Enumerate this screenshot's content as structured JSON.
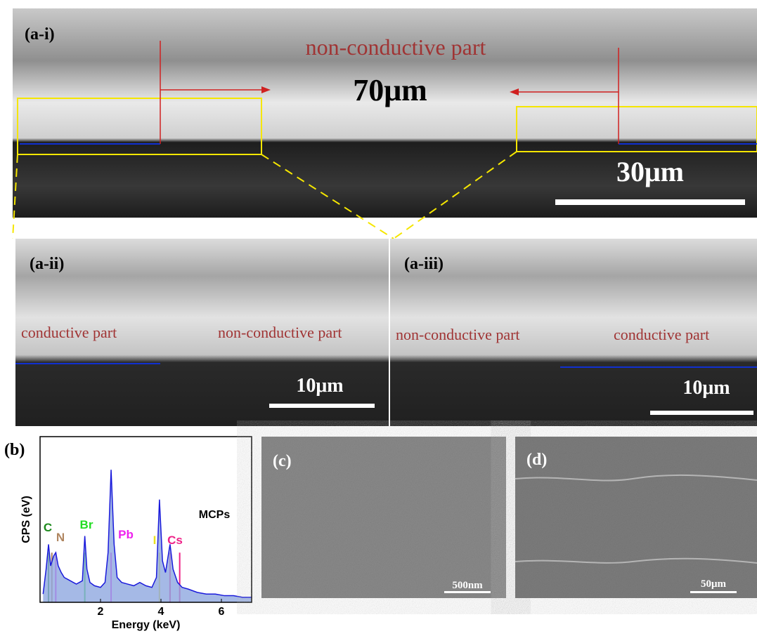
{
  "panel_a_i": {
    "label": "(a-i)",
    "caption": "non-conductive part",
    "width_text": "70μm",
    "scale_text": "30μm"
  },
  "panel_a_ii": {
    "label": "(a-ii)",
    "left_text": "conductive part",
    "right_text": "non-conductive part",
    "scale_text": "10μm"
  },
  "panel_a_iii": {
    "label": "(a-iii)",
    "left_text": "non-conductive part",
    "right_text": "conductive part",
    "scale_text": "10μm"
  },
  "panel_b": {
    "label": "(b)"
  },
  "panel_c": {
    "label": "(c)",
    "scale_text": "500nm"
  },
  "panel_d": {
    "label": "(d)",
    "scale_text": "50μm"
  },
  "chart_data": {
    "type": "area",
    "x_label": "Energy (keV)",
    "y_label": "CPS (eV)",
    "x": [
      0.1,
      0.2,
      0.28,
      0.35,
      0.45,
      0.52,
      0.6,
      0.7,
      0.8,
      0.9,
      1.0,
      1.1,
      1.2,
      1.3,
      1.4,
      1.48,
      1.55,
      1.65,
      1.8,
      2.0,
      2.15,
      2.25,
      2.35,
      2.45,
      2.55,
      2.7,
      2.9,
      3.1,
      3.3,
      3.5,
      3.7,
      3.85,
      3.95,
      4.05,
      4.15,
      4.3,
      4.4,
      4.55,
      4.7,
      4.9,
      5.2,
      5.5,
      5.8,
      6.1,
      6.4,
      6.7,
      7.0
    ],
    "series": [
      {
        "name": "MCPs",
        "color": "#1a1adb",
        "values": [
          5,
          20,
          35,
          22,
          28,
          30,
          22,
          18,
          15,
          14,
          13,
          12,
          11,
          12,
          13,
          40,
          20,
          12,
          10,
          9,
          12,
          30,
          80,
          35,
          15,
          12,
          11,
          10,
          12,
          10,
          9,
          15,
          62,
          25,
          18,
          35,
          20,
          12,
          9,
          8,
          6,
          5,
          5,
          4,
          4,
          3,
          3
        ]
      }
    ],
    "xlim": [
      0,
      7
    ],
    "xticks": [
      2,
      4,
      6
    ],
    "ylim": [
      0,
      100
    ],
    "annotations": [
      {
        "text": "C",
        "color": "#1e8a1e"
      },
      {
        "text": "N",
        "color": "#b08660"
      },
      {
        "text": "Br",
        "color": "#22dd22"
      },
      {
        "text": "Pb",
        "color": "#ee22ee"
      },
      {
        "text": "I",
        "color": "#e8e020"
      },
      {
        "text": "Cs",
        "color": "#ee2288"
      }
    ]
  }
}
